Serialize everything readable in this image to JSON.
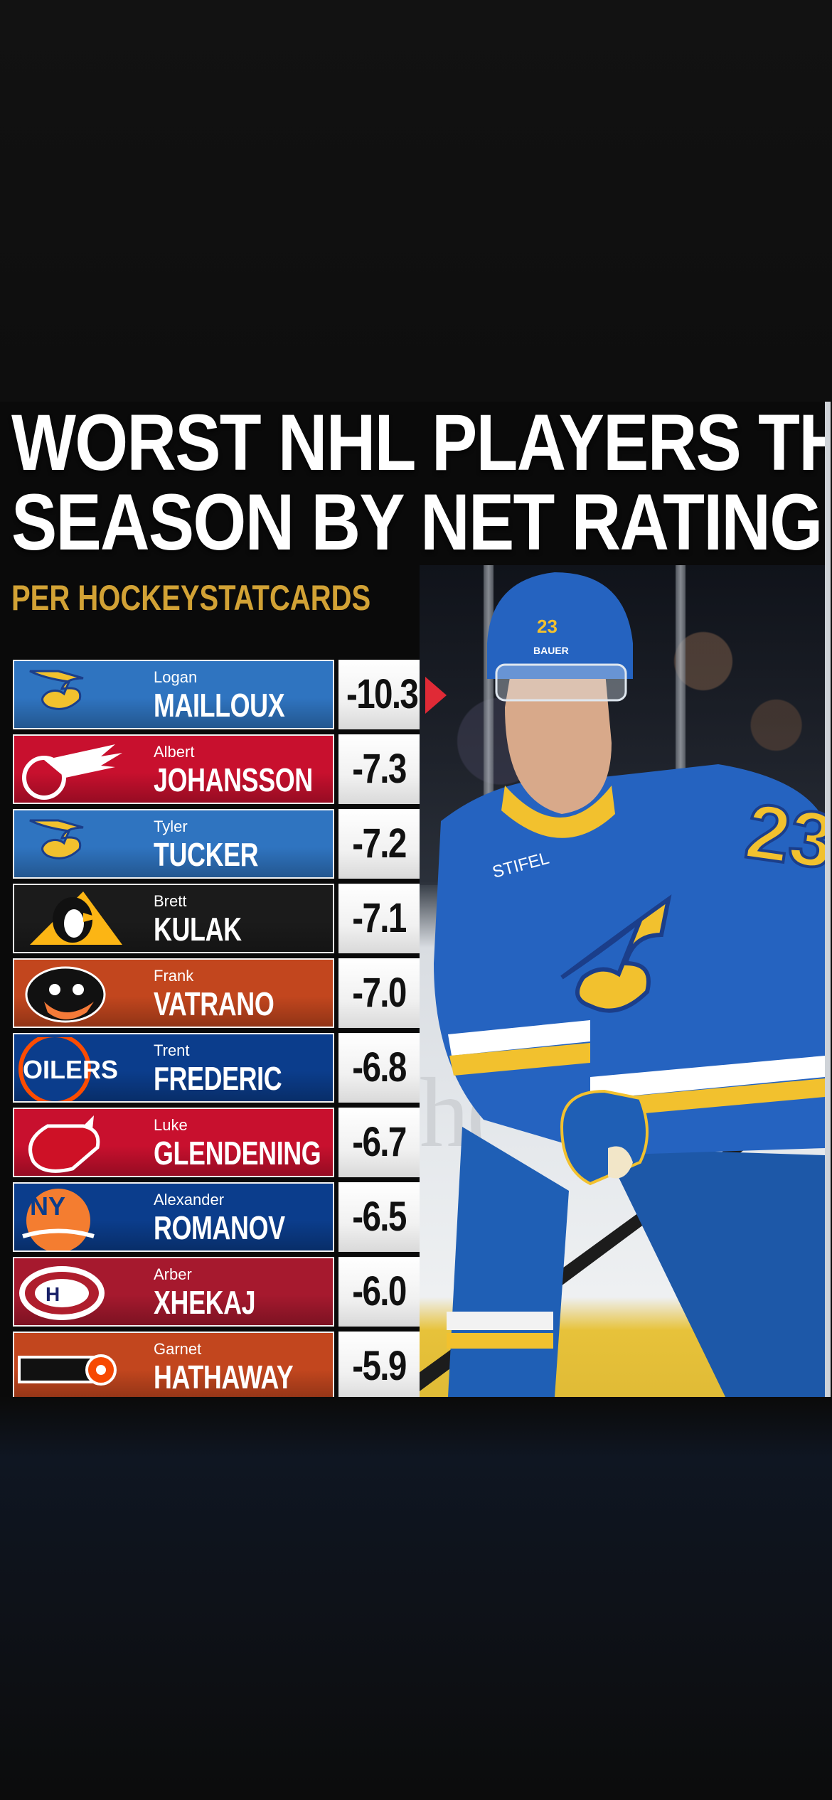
{
  "header": {
    "title_line1": "WORST NHL PLAYERS THIS",
    "title_line2": "SEASON BY NET RATING",
    "subtitle": "PER HOCKEYSTATCARDS"
  },
  "colors": {
    "title": "#ffffff",
    "subtitle": "#d2a235",
    "pointer": "#e02a36"
  },
  "photo": {
    "jersey_number": "23",
    "sponsor_patch": "STIFEL",
    "helmet_brand": "BAUER",
    "board_text": "h("
  },
  "players": [
    {
      "first": "Logan",
      "last": "MAILLOUX",
      "rating": "-10.3",
      "team_icon": "blues-note-icon",
      "color": "#2f74c0"
    },
    {
      "first": "Albert",
      "last": "JOHANSSON",
      "rating": "-7.3",
      "team_icon": "red-wings-icon",
      "color": "#c8102e"
    },
    {
      "first": "Tyler",
      "last": "TUCKER",
      "rating": "-7.2",
      "team_icon": "blues-note-icon",
      "color": "#2f74c0"
    },
    {
      "first": "Brett",
      "last": "KULAK",
      "rating": "-7.1",
      "team_icon": "penguins-icon",
      "color": "#1b1b1b"
    },
    {
      "first": "Frank",
      "last": "VATRANO",
      "rating": "-7.0",
      "team_icon": "ducks-icon",
      "color": "#c2461e"
    },
    {
      "first": "Trent",
      "last": "FREDERIC",
      "rating": "-6.8",
      "team_icon": "oilers-icon",
      "color": "#0b3d8c"
    },
    {
      "first": "Luke",
      "last": "GLENDENING",
      "rating": "-6.7",
      "team_icon": "devils-icon",
      "color": "#c8102e"
    },
    {
      "first": "Alexander",
      "last": "ROMANOV",
      "rating": "-6.5",
      "team_icon": "islanders-icon",
      "color": "#0b3d8c"
    },
    {
      "first": "Arber",
      "last": "XHEKAJ",
      "rating": "-6.0",
      "team_icon": "canadiens-icon",
      "color": "#a6192e"
    },
    {
      "first": "Garnet",
      "last": "HATHAWAY",
      "rating": "-5.9",
      "team_icon": "flyers-icon",
      "color": "#c2461e"
    }
  ]
}
